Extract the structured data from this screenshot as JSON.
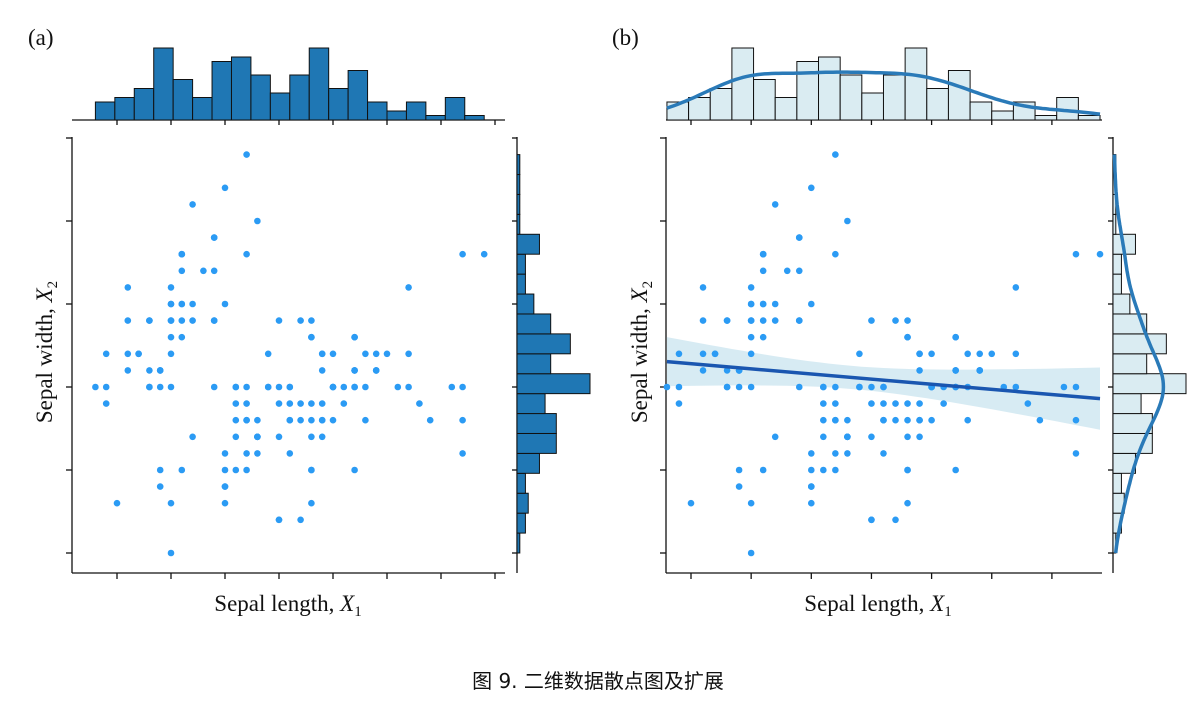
{
  "caption": "图 9. 二维数据散点图及扩展",
  "colors": {
    "point": "#2b9bf4",
    "hist_a": "#1f77b4",
    "hist_b": "#daecf2",
    "kde": "#2a7ab8",
    "reg": "#1a56b0",
    "band": "#cde6f0"
  },
  "chart_data": [
    {
      "panel_label": "(a)",
      "type": "scatter",
      "title": "",
      "xlabel": {
        "text": "Sepal length, ",
        "var": "X",
        "sub": "1"
      },
      "ylabel": {
        "text": "Sepal width, ",
        "var": "X",
        "sub": "2"
      },
      "xlim": [
        4.3,
        7.9
      ],
      "ylim": [
        2.0,
        4.4
      ],
      "xticks": [
        4.5,
        5.0,
        5.5,
        6.0,
        6.5,
        7.0,
        7.5,
        8.0
      ],
      "yticks": [
        2.0,
        2.5,
        3.0,
        3.5,
        4.0,
        4.5
      ],
      "marginals": {
        "type": "histogram",
        "bins": 20
      },
      "grid": false
    },
    {
      "panel_label": "(b)",
      "type": "scatter",
      "title": "",
      "xlabel": {
        "text": "Sepal length, ",
        "var": "X",
        "sub": "1"
      },
      "ylabel": {
        "text": "Sepal width, ",
        "var": "X",
        "sub": "2"
      },
      "xlim": [
        4.3,
        7.9
      ],
      "ylim": [
        2.0,
        4.4
      ],
      "xticks": [
        4.5,
        5.0,
        5.5,
        6.0,
        6.5,
        7.0,
        7.5
      ],
      "yticks": [
        2.0,
        2.5,
        3.0,
        3.5,
        4.0,
        4.5
      ],
      "marginals": {
        "type": "histogram+kde",
        "bins": 20
      },
      "regression": {
        "slope": -0.0619,
        "intercept": 3.4189,
        "ci": 0.95
      },
      "grid": false
    }
  ],
  "points": {
    "x": [
      5.1,
      4.9,
      4.7,
      4.6,
      5.0,
      5.4,
      4.6,
      5.0,
      4.4,
      4.9,
      5.4,
      4.8,
      4.8,
      4.3,
      5.8,
      5.7,
      5.4,
      5.1,
      5.7,
      5.1,
      5.4,
      5.1,
      4.6,
      5.1,
      4.8,
      5.0,
      5.0,
      5.2,
      5.2,
      4.7,
      4.8,
      5.4,
      5.2,
      5.5,
      4.9,
      5.0,
      5.5,
      4.9,
      4.4,
      5.1,
      5.0,
      4.5,
      4.4,
      5.0,
      5.1,
      4.8,
      5.1,
      4.6,
      5.3,
      5.0,
      7.0,
      6.4,
      6.9,
      5.5,
      6.5,
      5.7,
      6.3,
      4.9,
      6.6,
      5.2,
      5.0,
      5.9,
      6.0,
      6.1,
      5.6,
      6.7,
      5.6,
      5.8,
      6.2,
      5.6,
      5.9,
      6.1,
      6.3,
      6.1,
      6.4,
      6.6,
      6.8,
      6.7,
      6.0,
      5.7,
      5.5,
      5.5,
      5.8,
      6.0,
      5.4,
      6.0,
      6.7,
      6.3,
      5.6,
      5.5,
      5.5,
      6.1,
      5.8,
      5.0,
      5.6,
      5.7,
      5.7,
      6.2,
      5.1,
      5.7,
      6.3,
      5.8,
      7.1,
      6.3,
      6.5,
      7.6,
      4.9,
      7.3,
      6.7,
      7.2,
      6.5,
      6.4,
      6.8,
      5.7,
      5.8,
      6.4,
      6.5,
      7.7,
      7.7,
      6.0,
      6.9,
      5.6,
      7.7,
      6.3,
      6.7,
      7.2,
      6.2,
      6.1,
      6.4,
      7.2,
      7.4,
      7.9,
      6.4,
      6.3,
      6.1,
      7.7,
      6.3,
      6.4,
      6.0,
      6.9,
      6.7,
      6.9,
      5.8,
      6.8,
      6.7,
      6.7,
      6.3,
      6.5,
      6.2,
      5.9
    ],
    "y": [
      3.5,
      3.0,
      3.2,
      3.1,
      3.6,
      3.9,
      3.4,
      3.4,
      2.9,
      3.1,
      3.7,
      3.4,
      3.0,
      3.0,
      4.0,
      4.4,
      3.9,
      3.5,
      3.8,
      3.8,
      3.4,
      3.7,
      3.6,
      3.3,
      3.4,
      3.0,
      3.4,
      3.5,
      3.4,
      3.2,
      3.1,
      3.4,
      4.1,
      4.2,
      3.1,
      3.2,
      3.5,
      3.1,
      3.0,
      3.4,
      3.5,
      2.3,
      3.2,
      3.5,
      3.8,
      3.0,
      3.8,
      3.2,
      3.7,
      3.3,
      3.2,
      3.2,
      3.1,
      2.3,
      2.8,
      2.8,
      3.3,
      2.4,
      2.9,
      2.7,
      2.0,
      3.0,
      2.2,
      2.9,
      2.9,
      3.1,
      3.0,
      2.7,
      2.2,
      2.5,
      3.2,
      2.8,
      2.5,
      2.8,
      2.9,
      3.0,
      2.8,
      3.0,
      2.9,
      2.6,
      2.4,
      2.4,
      2.7,
      2.7,
      3.0,
      3.4,
      3.1,
      2.3,
      3.0,
      2.5,
      2.6,
      3.0,
      2.6,
      2.3,
      2.7,
      3.0,
      2.9,
      2.9,
      2.5,
      2.8,
      3.3,
      2.7,
      3.0,
      2.9,
      3.0,
      3.0,
      2.5,
      2.9,
      2.5,
      3.6,
      3.2,
      2.7,
      3.0,
      2.5,
      2.8,
      3.2,
      3.0,
      3.8,
      2.6,
      2.2,
      3.2,
      2.8,
      2.8,
      2.7,
      3.3,
      3.2,
      2.8,
      3.0,
      2.8,
      3.0,
      2.8,
      3.8,
      2.8,
      2.8,
      2.6,
      3.0,
      3.4,
      3.1,
      3.0,
      3.1,
      3.1,
      3.1,
      2.7,
      3.2,
      3.3,
      3.0,
      2.5,
      3.0,
      3.4,
      3.0
    ]
  }
}
